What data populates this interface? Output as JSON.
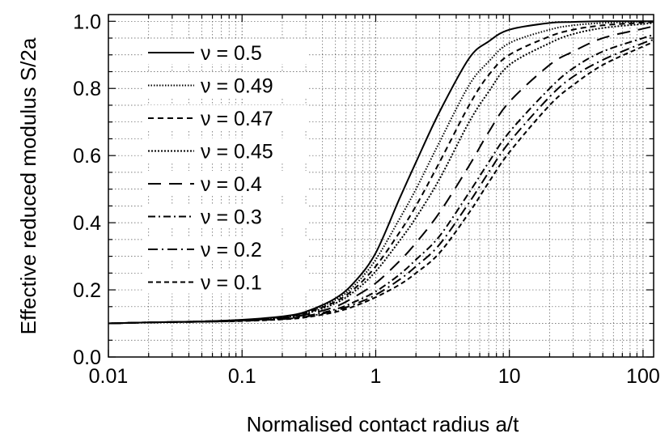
{
  "chart_data": {
    "type": "line",
    "xlabel": "Normalised contact radius a/t",
    "ylabel": "Effective reduced modulus S/2a",
    "x_scale": "log",
    "xlim": [
      0.01,
      120
    ],
    "ylim": [
      0.0,
      1.02
    ],
    "grid": true,
    "legend_position": "top-left",
    "x_ticks": [
      {
        "value": 0.01,
        "label": "0.01"
      },
      {
        "value": 0.1,
        "label": "0.1"
      },
      {
        "value": 1,
        "label": "1"
      },
      {
        "value": 10,
        "label": "10"
      },
      {
        "value": 100,
        "label": "100"
      }
    ],
    "y_ticks": [
      {
        "value": 0.0,
        "label": "0.0"
      },
      {
        "value": 0.2,
        "label": "0.2"
      },
      {
        "value": 0.4,
        "label": "0.4"
      },
      {
        "value": 0.6,
        "label": "0.6"
      },
      {
        "value": 0.8,
        "label": "0.8"
      },
      {
        "value": 1.0,
        "label": "1.0"
      }
    ],
    "x": [
      0.01,
      0.02,
      0.05,
      0.1,
      0.2,
      0.3,
      0.5,
      0.7,
      1,
      1.5,
      2,
      3,
      5,
      7,
      10,
      20,
      30,
      50,
      100,
      120
    ],
    "series": [
      {
        "name": "ν = 0.5",
        "dash": "",
        "values": [
          0.1,
          0.103,
          0.106,
          0.111,
          0.121,
          0.135,
          0.175,
          0.225,
          0.31,
          0.47,
          0.58,
          0.73,
          0.89,
          0.94,
          0.975,
          0.995,
          0.998,
          1.0,
          1.0,
          1.0
        ]
      },
      {
        "name": "ν = 0.49",
        "dash": "1.5,2",
        "values": [
          0.1,
          0.103,
          0.106,
          0.11,
          0.12,
          0.133,
          0.17,
          0.215,
          0.29,
          0.41,
          0.5,
          0.64,
          0.81,
          0.88,
          0.935,
          0.975,
          0.988,
          0.995,
          0.999,
          1.0
        ]
      },
      {
        "name": "ν = 0.47",
        "dash": "7,5",
        "values": [
          0.1,
          0.103,
          0.106,
          0.11,
          0.119,
          0.131,
          0.165,
          0.205,
          0.27,
          0.37,
          0.45,
          0.58,
          0.75,
          0.84,
          0.9,
          0.955,
          0.975,
          0.988,
          0.996,
          0.998
        ]
      },
      {
        "name": "ν = 0.45",
        "dash": "2,2",
        "values": [
          0.1,
          0.103,
          0.106,
          0.11,
          0.118,
          0.129,
          0.16,
          0.197,
          0.255,
          0.345,
          0.415,
          0.53,
          0.7,
          0.79,
          0.87,
          0.935,
          0.962,
          0.98,
          0.992,
          0.995
        ]
      },
      {
        "name": "ν = 0.4",
        "dash": "16,10",
        "values": [
          0.1,
          0.103,
          0.106,
          0.109,
          0.116,
          0.126,
          0.15,
          0.18,
          0.22,
          0.285,
          0.34,
          0.43,
          0.57,
          0.67,
          0.76,
          0.87,
          0.91,
          0.95,
          0.978,
          0.985
        ]
      },
      {
        "name": "ν = 0.3",
        "dash": "9,4,2,4",
        "values": [
          0.1,
          0.103,
          0.105,
          0.108,
          0.114,
          0.122,
          0.142,
          0.165,
          0.195,
          0.245,
          0.29,
          0.36,
          0.49,
          0.58,
          0.67,
          0.8,
          0.86,
          0.91,
          0.95,
          0.96
        ]
      },
      {
        "name": "ν = 0.2",
        "dash": "12,5,2,5",
        "values": [
          0.1,
          0.103,
          0.105,
          0.108,
          0.113,
          0.12,
          0.138,
          0.158,
          0.185,
          0.23,
          0.27,
          0.335,
          0.46,
          0.55,
          0.64,
          0.775,
          0.835,
          0.885,
          0.935,
          0.945
        ]
      },
      {
        "name": "ν = 0.1",
        "dash": "6,4",
        "values": [
          0.1,
          0.103,
          0.105,
          0.107,
          0.112,
          0.118,
          0.134,
          0.152,
          0.178,
          0.215,
          0.25,
          0.31,
          0.43,
          0.52,
          0.61,
          0.75,
          0.81,
          0.87,
          0.925,
          0.938
        ]
      }
    ]
  }
}
